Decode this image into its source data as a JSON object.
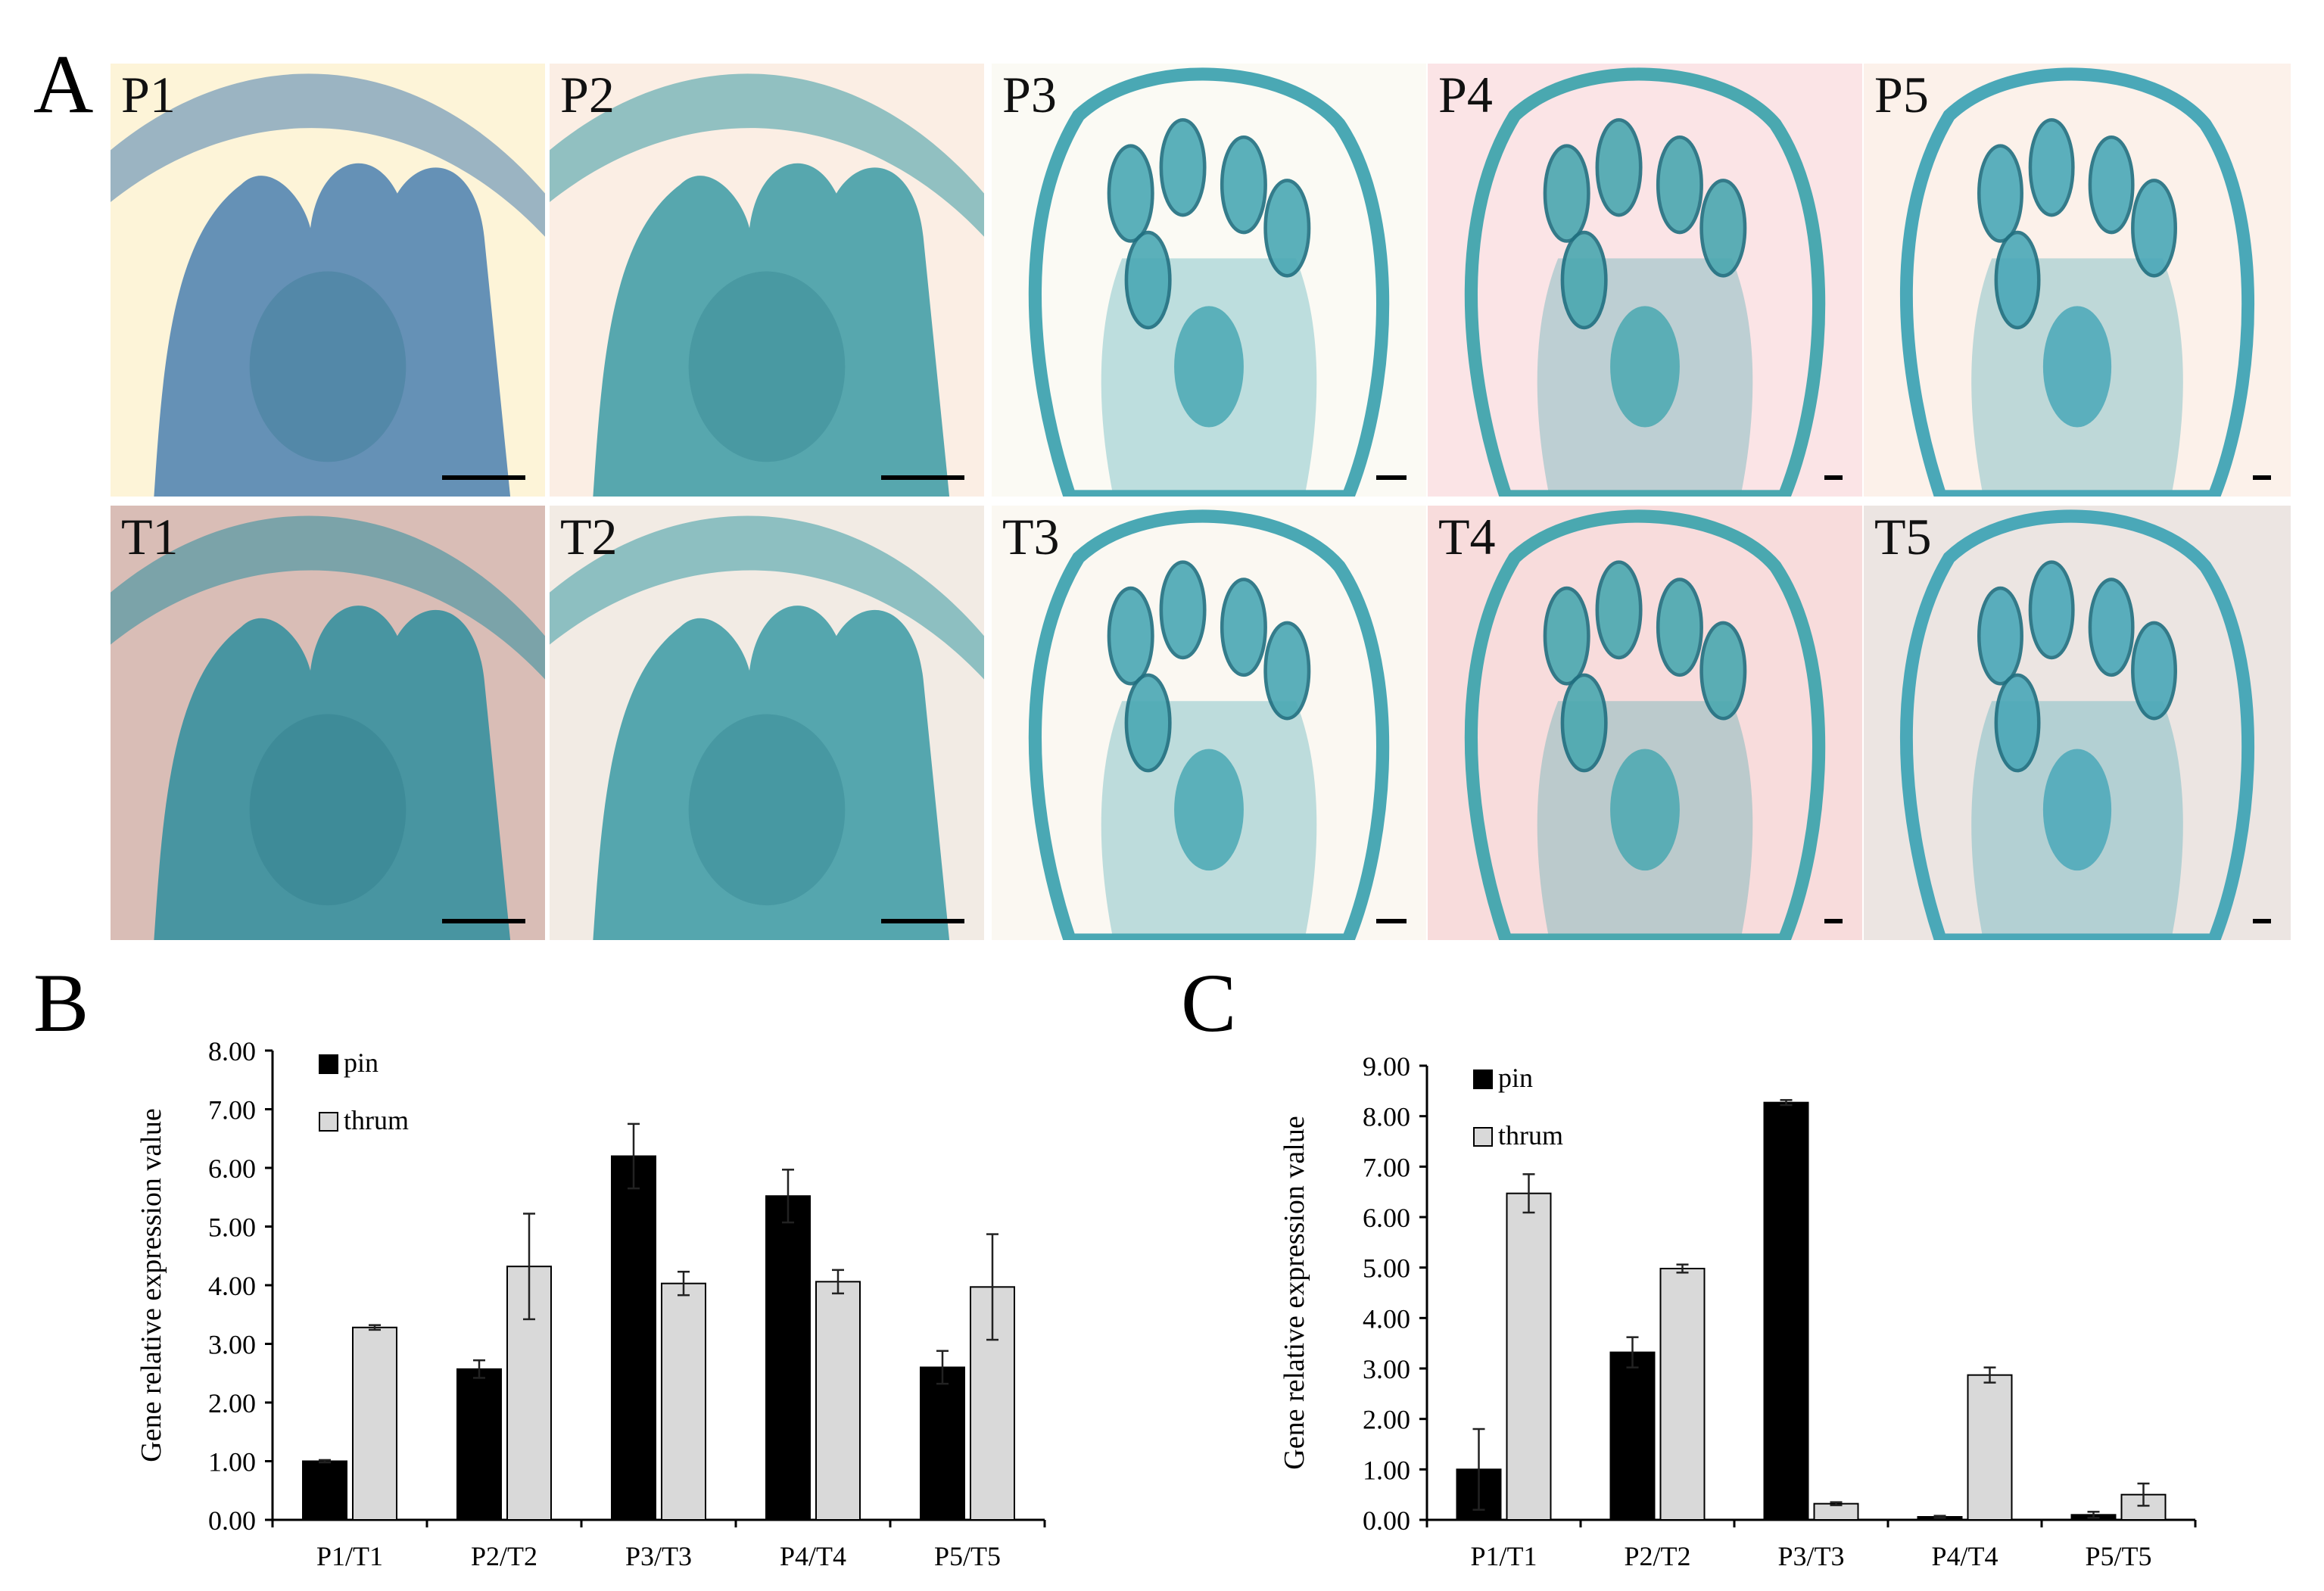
{
  "panels": {
    "a": "A",
    "b": "B",
    "c": "C"
  },
  "micrographs": [
    {
      "label": "P1",
      "background": "#fdf4d8",
      "tissue": "#4a7fb0"
    },
    {
      "label": "P2",
      "background": "#fbeee4",
      "tissue": "#3a9aa4"
    },
    {
      "label": "P3",
      "background": "#fbfaf4",
      "tissue": "#4aa8b4"
    },
    {
      "label": "P4",
      "background": "#fbe4e6",
      "tissue": "#4aa8b0"
    },
    {
      "label": "P5",
      "background": "#fcf1ea",
      "tissue": "#4aa8b8"
    },
    {
      "label": "T1",
      "background": "#d9bdb6",
      "tissue": "#2e8e9e"
    },
    {
      "label": "T2",
      "background": "#f2ebe4",
      "tissue": "#3a9aa4"
    },
    {
      "label": "T3",
      "background": "#fbf8f2",
      "tissue": "#4aa8b4"
    },
    {
      "label": "T4",
      "background": "#f8dcdc",
      "tissue": "#4aa8b0"
    },
    {
      "label": "T5",
      "background": "#ece5e2",
      "tissue": "#4aa8b8"
    }
  ],
  "chart_data": [
    {
      "type": "bar",
      "panel": "B",
      "categories": [
        "P1/T1",
        "P2/T2",
        "P3/T3",
        "P4/T4",
        "P5/T5"
      ],
      "series": [
        {
          "name": "pin",
          "color": "#000000",
          "values": [
            1.0,
            2.57,
            6.2,
            5.52,
            2.6
          ],
          "errors": [
            0.02,
            0.15,
            0.55,
            0.45,
            0.28
          ]
        },
        {
          "name": "thrum",
          "color": "#d9d9d9",
          "values": [
            3.28,
            4.32,
            4.03,
            4.06,
            3.97
          ],
          "errors": [
            0.04,
            0.9,
            0.2,
            0.2,
            0.9
          ]
        }
      ],
      "ylabel": "Gene relative expression value",
      "ylim": [
        0,
        8
      ],
      "yticks": [
        "0.00",
        "1.00",
        "2.00",
        "3.00",
        "4.00",
        "5.00",
        "6.00",
        "7.00",
        "8.00"
      ],
      "legend": "top-left",
      "grid": false
    },
    {
      "type": "bar",
      "panel": "C",
      "categories": [
        "P1/T1",
        "P2/T2",
        "P3/T3",
        "P4/T4",
        "P5/T5"
      ],
      "series": [
        {
          "name": "pin",
          "color": "#000000",
          "values": [
            1.0,
            3.32,
            8.27,
            0.06,
            0.1
          ],
          "errors": [
            0.8,
            0.3,
            0.05,
            0.02,
            0.06
          ]
        },
        {
          "name": "thrum",
          "color": "#d9d9d9",
          "values": [
            6.47,
            4.98,
            0.32,
            2.87,
            0.5
          ],
          "errors": [
            0.38,
            0.08,
            0.03,
            0.15,
            0.22
          ]
        }
      ],
      "ylabel": "Gene relative expression value",
      "ylim": [
        0,
        9
      ],
      "yticks": [
        "0.00",
        "1.00",
        "2.00",
        "3.00",
        "4.00",
        "5.00",
        "6.00",
        "7.00",
        "8.00",
        "9.00"
      ],
      "legend": "top-left",
      "grid": false
    }
  ]
}
